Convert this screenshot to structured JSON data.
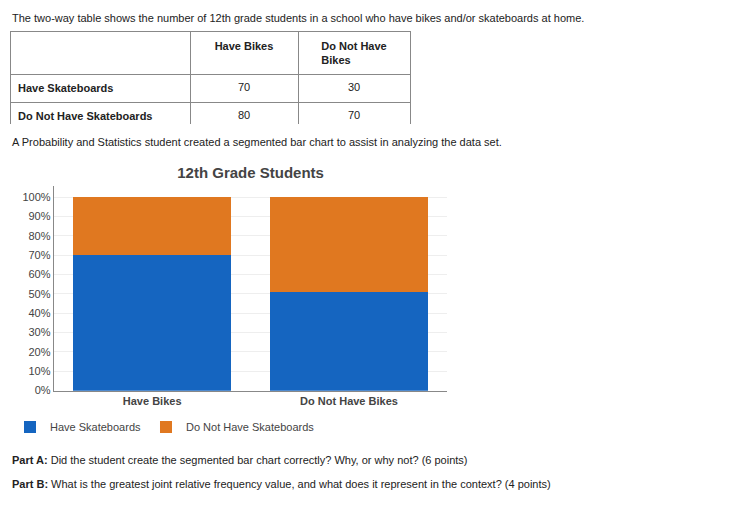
{
  "chart_data": {
    "type": "bar",
    "stacked": true,
    "title": "12th Grade Students",
    "categories": [
      "Have Bikes",
      "Do Not Have Bikes"
    ],
    "series": [
      {
        "name": "Have Skateboards",
        "color": "#1565c0",
        "values": [
          70,
          51
        ]
      },
      {
        "name": "Do Not Have Skateboards",
        "color": "#e07820",
        "values": [
          30,
          49
        ]
      }
    ],
    "ylim": [
      0,
      106
    ],
    "yticks": [
      {
        "value": 0,
        "label": "0%"
      },
      {
        "value": 10,
        "label": "10%"
      },
      {
        "value": 20,
        "label": "20%"
      },
      {
        "value": 30,
        "label": "30%"
      },
      {
        "value": 40,
        "label": "40%"
      },
      {
        "value": 50,
        "label": "50%"
      },
      {
        "value": 60,
        "label": "60%"
      },
      {
        "value": 70,
        "label": "70%"
      },
      {
        "value": 80,
        "label": "80%"
      },
      {
        "value": 90,
        "label": "90%"
      },
      {
        "value": 100,
        "label": "100%"
      }
    ],
    "grid": true,
    "legend": "bottom",
    "table": {
      "columns": [
        "Have Bikes",
        "Do Not Have Bikes"
      ],
      "rows": [
        {
          "label": "Have Skateboards",
          "values": [
            70,
            30
          ]
        },
        {
          "label": "Do Not Have Skateboards",
          "values": [
            80,
            70
          ]
        }
      ]
    },
    "annotations": [
      {
        "text": "The two-way table shows the number of 12th grade students in a school who have bikes and/or skateboards at home."
      },
      {
        "text": "A Probability and Statistics student created a segmented bar chart to assist in analyzing the data set."
      },
      {
        "bold": "Part A:",
        "text": " Did the student create the segmented bar chart correctly? Why, or why ​not​? (6 points)"
      },
      {
        "bold": "Part B:",
        "text": " What is the greatest joint relative frequency value, and what does it represent in the context? (4 points)"
      }
    ]
  }
}
